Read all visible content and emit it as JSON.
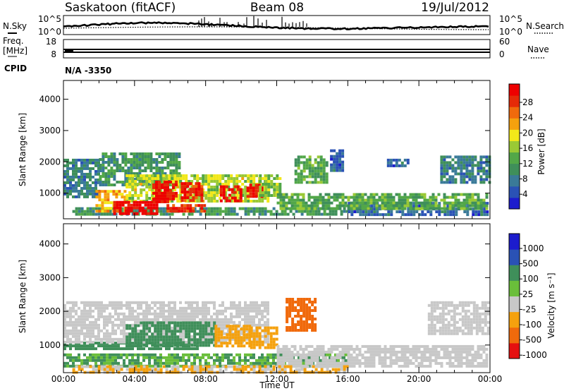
{
  "header": {
    "station": "Saskatoon (fitACF)",
    "beam": "Beam 08",
    "date": "19/Jul/2012"
  },
  "sky_panel": {
    "left_label": "N.Sky",
    "right_label": "N.Search",
    "left_ticks": [
      "10^5",
      "10^0"
    ],
    "right_ticks": [
      "10^5",
      "10^0"
    ]
  },
  "freq_panel": {
    "label_top": "Freq.",
    "label_unit": "[MHz]",
    "left_ticks": [
      "18",
      "8"
    ],
    "right_ticks": [
      "60",
      "0"
    ],
    "right_label": "Nave"
  },
  "cpid": {
    "label": "CPID",
    "value": "N/A -3350"
  },
  "power_panel": {
    "ylabel": "Slant Range [km]",
    "colorbar_label": "Power [dB]",
    "colorbar_ticks": [
      "28",
      "24",
      "20",
      "16",
      "12",
      "8",
      "4"
    ]
  },
  "velocity_panel": {
    "ylabel": "Slant Range [km]",
    "colorbar_label": "Velocity [m s⁻¹]",
    "colorbar_ticks": [
      "1000",
      "500",
      "100",
      "25",
      "-25",
      "-100",
      "-500",
      "-1000"
    ]
  },
  "xlabel": "Time UT",
  "colors": {
    "power": [
      "#1c1ccd",
      "#2a52b5",
      "#3a7a98",
      "#3f8f5a",
      "#52a748",
      "#9ac935",
      "#f2e81a",
      "#f5a10e",
      "#f06a0c",
      "#e52a08",
      "#ee0000"
    ],
    "velocity": [
      "#e51010",
      "#f06a0c",
      "#f5a10e",
      "#c8c8c8",
      "#6abe3a",
      "#3f8f5a",
      "#2a52b5",
      "#1c1ccd"
    ]
  },
  "chart_data": [
    {
      "type": "heatmap",
      "quantity": "Power [dB]",
      "xlim": [
        0,
        24
      ],
      "ylim": [
        180,
        4600
      ],
      "x_ticks": [
        "00:00",
        "04:00",
        "08:00",
        "12:00",
        "16:00",
        "20:00",
        "00:00"
      ],
      "y_ticks": [
        1000,
        2000,
        3000,
        4000
      ],
      "colorbar": [
        4,
        8,
        12,
        16,
        20,
        24,
        28
      ],
      "regions": [
        {
          "t": [
            0.5,
            16.0
          ],
          "range": [
            300,
            550
          ],
          "value": 10
        },
        {
          "t": [
            16.0,
            23.9
          ],
          "range": [
            280,
            720
          ],
          "value": 6
        },
        {
          "t": [
            0.0,
            2.0
          ],
          "range": [
            900,
            2100
          ],
          "value": 8
        },
        {
          "t": [
            2.0,
            6.5
          ],
          "range": [
            1300,
            2300
          ],
          "value": 10
        },
        {
          "t": [
            1.8,
            3.5
          ],
          "range": [
            400,
            1100
          ],
          "value": 20
        },
        {
          "t": [
            3.5,
            11.5
          ],
          "range": [
            700,
            1600
          ],
          "value": 16
        },
        {
          "t": [
            5.0,
            6.4
          ],
          "range": [
            700,
            1400
          ],
          "value": 28
        },
        {
          "t": [
            6.6,
            7.8
          ],
          "range": [
            800,
            1350
          ],
          "value": 26
        },
        {
          "t": [
            8.8,
            10.0
          ],
          "range": [
            750,
            1250
          ],
          "value": 28
        },
        {
          "t": [
            10.3,
            11.2
          ],
          "range": [
            850,
            1300
          ],
          "value": 27
        },
        {
          "t": [
            2.8,
            5.2
          ],
          "range": [
            350,
            750
          ],
          "value": 28
        },
        {
          "t": [
            5.8,
            8.0
          ],
          "range": [
            380,
            650
          ],
          "value": 26
        },
        {
          "t": [
            11.0,
            12.2
          ],
          "range": [
            900,
            1600
          ],
          "value": 14
        },
        {
          "t": [
            13.0,
            14.8
          ],
          "range": [
            1300,
            2200
          ],
          "value": 12
        },
        {
          "t": [
            12.0,
            23.8
          ],
          "range": [
            500,
            1000
          ],
          "value": 12
        },
        {
          "t": [
            18.2,
            19.4
          ],
          "range": [
            1900,
            2100
          ],
          "value": 6
        },
        {
          "t": [
            21.2,
            23.9
          ],
          "range": [
            1300,
            2200
          ],
          "value": 8
        },
        {
          "t": [
            15.0,
            15.7
          ],
          "range": [
            1700,
            2400
          ],
          "value": 6
        }
      ]
    },
    {
      "type": "heatmap",
      "quantity": "Velocity [m s-1]",
      "xlim": [
        0,
        24
      ],
      "ylim": [
        180,
        4600
      ],
      "x_ticks": [
        "00:00",
        "04:00",
        "08:00",
        "12:00",
        "16:00",
        "20:00",
        "00:00"
      ],
      "y_ticks": [
        1000,
        2000,
        3000,
        4000
      ],
      "colorbar": [
        -1000,
        -500,
        -100,
        -25,
        25,
        100,
        500,
        1000
      ],
      "regions": [
        {
          "t": [
            0.0,
            16.0
          ],
          "range": [
            400,
            750
          ],
          "value": 60
        },
        {
          "t": [
            0.0,
            7.5
          ],
          "range": [
            850,
            1100
          ],
          "value": 80
        },
        {
          "t": [
            0.0,
            11.5
          ],
          "range": [
            1100,
            2300
          ],
          "value": 0
        },
        {
          "t": [
            3.5,
            8.5
          ],
          "range": [
            1000,
            1700
          ],
          "value": 150
        },
        {
          "t": [
            8.5,
            10.5
          ],
          "range": [
            950,
            1600
          ],
          "value": -150
        },
        {
          "t": [
            10.5,
            12.0
          ],
          "range": [
            950,
            1550
          ],
          "value": -250
        },
        {
          "t": [
            12.5,
            14.2
          ],
          "range": [
            1400,
            2400
          ],
          "value": -400
        },
        {
          "t": [
            12.0,
            23.8
          ],
          "range": [
            350,
            1000
          ],
          "value": 0
        },
        {
          "t": [
            0.5,
            16.0
          ],
          "range": [
            200,
            400
          ],
          "value": -60
        },
        {
          "t": [
            20.5,
            23.9
          ],
          "range": [
            1300,
            2300
          ],
          "value": 0
        }
      ]
    }
  ]
}
